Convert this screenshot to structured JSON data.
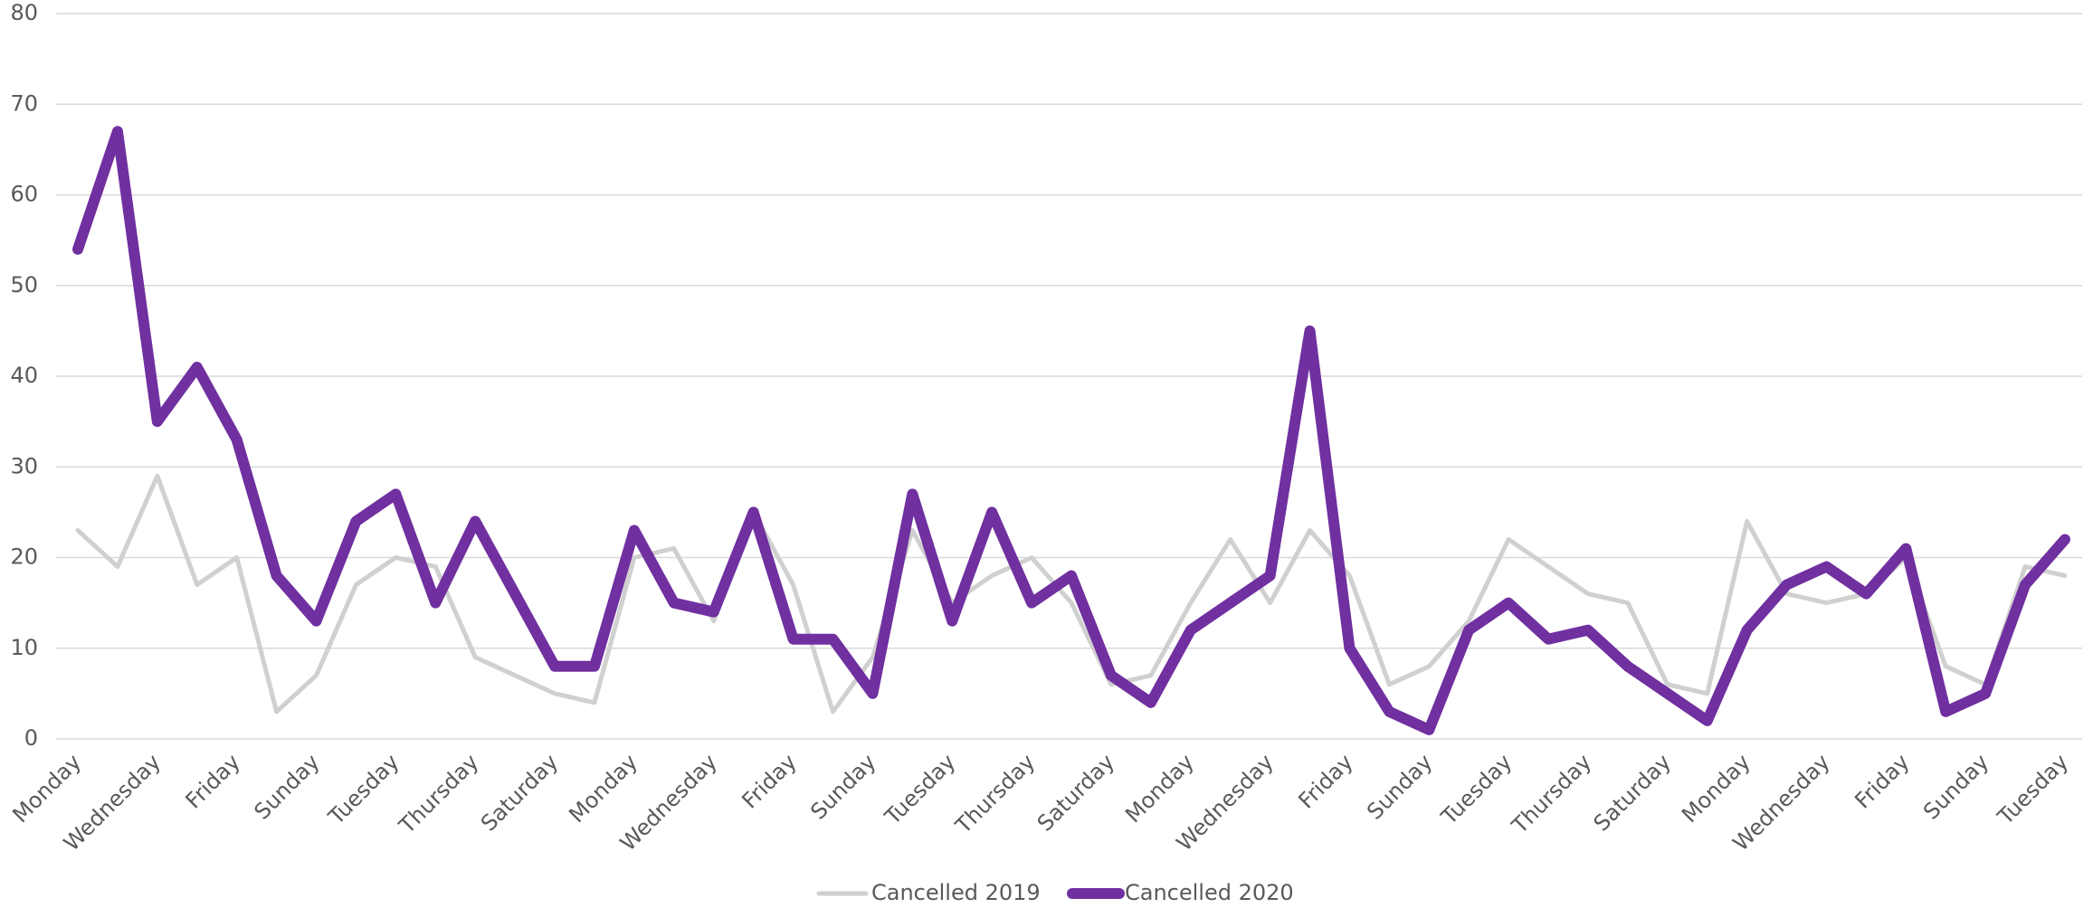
{
  "chart_data": {
    "type": "line",
    "categories": [
      "Monday",
      null,
      "Wednesday",
      null,
      "Friday",
      null,
      "Sunday",
      null,
      "Tuesday",
      null,
      "Thursday",
      null,
      "Saturday",
      null,
      "Monday",
      null,
      "Wednesday",
      null,
      "Friday",
      null,
      "Sunday",
      null,
      "Tuesday",
      null,
      "Thursday",
      null,
      "Saturday",
      null,
      "Monday",
      null,
      "Wednesday",
      null,
      "Friday",
      null,
      "Sunday",
      null,
      "Tuesday",
      null,
      "Thursday",
      null,
      "Saturday",
      null,
      "Monday",
      null,
      "Wednesday",
      null,
      "Friday",
      null,
      "Sunday",
      null,
      "Tuesday"
    ],
    "series": [
      {
        "name": "Cancelled 2019",
        "color": "#d0d0d0",
        "values": [
          23,
          19,
          29,
          17,
          20,
          3,
          7,
          17,
          20,
          19,
          9,
          7,
          5,
          4,
          20,
          21,
          13,
          25,
          17,
          3,
          9,
          23,
          15,
          18,
          20,
          15,
          6,
          7,
          15,
          22,
          15,
          23,
          18,
          6,
          8,
          13,
          22,
          19,
          16,
          15,
          6,
          5,
          24,
          16,
          15,
          16,
          20,
          8,
          6,
          19,
          18
        ]
      },
      {
        "name": "Cancelled 2020",
        "color": "#7030a0",
        "values": [
          54,
          67,
          35,
          41,
          33,
          18,
          13,
          24,
          27,
          15,
          24,
          16,
          8,
          8,
          23,
          15,
          14,
          25,
          11,
          11,
          5,
          27,
          13,
          25,
          15,
          18,
          7,
          4,
          12,
          15,
          18,
          45,
          10,
          3,
          1,
          12,
          15,
          11,
          12,
          8,
          5,
          2,
          12,
          17,
          19,
          16,
          21,
          3,
          5,
          17,
          22
        ]
      }
    ],
    "ylim": [
      0,
      80
    ],
    "yticks": [
      0,
      10,
      20,
      30,
      40,
      50,
      60,
      70,
      80
    ],
    "grid": true,
    "legend": "bottom"
  }
}
